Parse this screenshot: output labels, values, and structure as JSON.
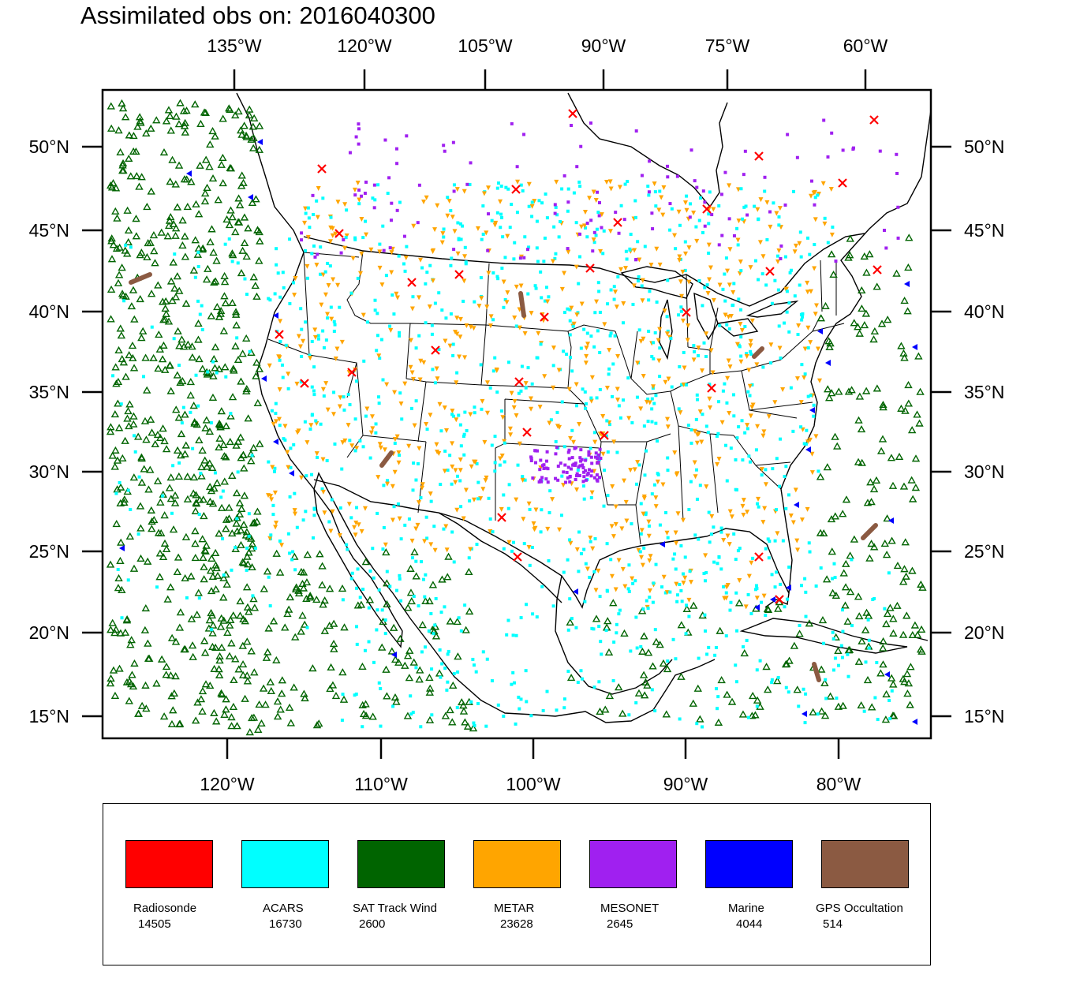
{
  "title": "Assimilated obs on: 2016040300",
  "map": {
    "top_lon_labels": [
      "135°W",
      "120°W",
      "105°W",
      "90°W",
      "75°W",
      "60°W"
    ],
    "bottom_lon_labels": [
      "120°W",
      "110°W",
      "100°W",
      "90°W",
      "80°W"
    ],
    "lat_labels": [
      "50°N",
      "45°N",
      "40°N",
      "35°N",
      "30°N",
      "25°N",
      "20°N",
      "15°N"
    ]
  },
  "legend": [
    {
      "name": "Radiosonde",
      "count": "14505",
      "color": "#ff0000"
    },
    {
      "name": "ACARS",
      "count": "16730",
      "color": "#00ffff"
    },
    {
      "name": "SAT Track Wind",
      "count": "2600",
      "color": "#006400"
    },
    {
      "name": "METAR",
      "count": "23628",
      "color": "#ffa500"
    },
    {
      "name": "MESONET",
      "count": "2645",
      "color": "#a020f0"
    },
    {
      "name": "Marine",
      "count": "4044",
      "color": "#0000ff"
    },
    {
      "name": "GPS Occultation",
      "count": "514",
      "color": "#8b5a42"
    }
  ]
}
